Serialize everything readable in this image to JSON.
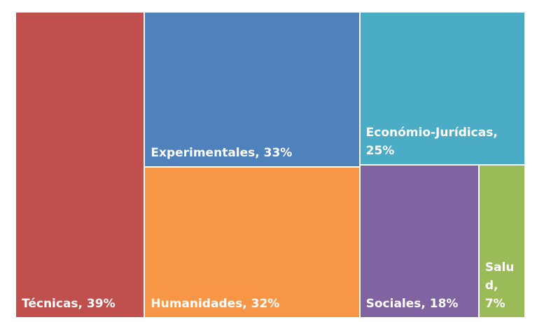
{
  "chart_data": {
    "type": "treemap",
    "labels": [
      "Técnicas, 39%",
      "Experimentales, 33%",
      "Humanidades, 32%",
      "Económio-Jurídicas, 25%",
      "Sociales, 18%",
      "Salud, 7%"
    ],
    "values": [
      39,
      33,
      32,
      25,
      18,
      7
    ],
    "colors": [
      "#c0504d",
      "#4f81bd",
      "#f79646",
      "#4bacc6",
      "#8064a2",
      "#9bbb59"
    ]
  }
}
